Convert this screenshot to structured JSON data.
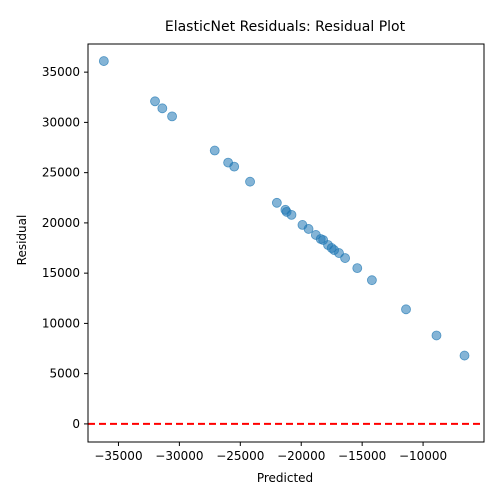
{
  "chart_data": {
    "type": "scatter",
    "title": "ElasticNet Residuals: Residual Plot",
    "xlabel": "Predicted",
    "ylabel": "Residual",
    "xlim": [
      -37500,
      -5000
    ],
    "ylim": [
      -1800,
      37800
    ],
    "xticks": [
      -35000,
      -30000,
      -25000,
      -20000,
      -15000,
      -10000
    ],
    "yticks": [
      0,
      5000,
      10000,
      15000,
      20000,
      25000,
      30000,
      35000
    ],
    "grid": false,
    "point_color": "#1f77b4",
    "point_alpha": 0.55,
    "reference_line": {
      "y": 0,
      "color": "#ff0000",
      "style": "dashed"
    },
    "points": [
      {
        "x": -36200,
        "y": 36100
      },
      {
        "x": -32000,
        "y": 32100
      },
      {
        "x": -31400,
        "y": 31400
      },
      {
        "x": -30600,
        "y": 30600
      },
      {
        "x": -27100,
        "y": 27200
      },
      {
        "x": -26000,
        "y": 26000
      },
      {
        "x": -25500,
        "y": 25600
      },
      {
        "x": -24200,
        "y": 24100
      },
      {
        "x": -22000,
        "y": 22000
      },
      {
        "x": -21300,
        "y": 21300
      },
      {
        "x": -21200,
        "y": 21100
      },
      {
        "x": -20800,
        "y": 20800
      },
      {
        "x": -19900,
        "y": 19800
      },
      {
        "x": -19400,
        "y": 19400
      },
      {
        "x": -18800,
        "y": 18800
      },
      {
        "x": -18400,
        "y": 18400
      },
      {
        "x": -18200,
        "y": 18300
      },
      {
        "x": -17800,
        "y": 17800
      },
      {
        "x": -17500,
        "y": 17500
      },
      {
        "x": -17300,
        "y": 17300
      },
      {
        "x": -16900,
        "y": 17000
      },
      {
        "x": -16400,
        "y": 16500
      },
      {
        "x": -15400,
        "y": 15500
      },
      {
        "x": -14200,
        "y": 14300
      },
      {
        "x": -11400,
        "y": 11400
      },
      {
        "x": -8900,
        "y": 8800
      },
      {
        "x": -6600,
        "y": 6800
      }
    ]
  }
}
